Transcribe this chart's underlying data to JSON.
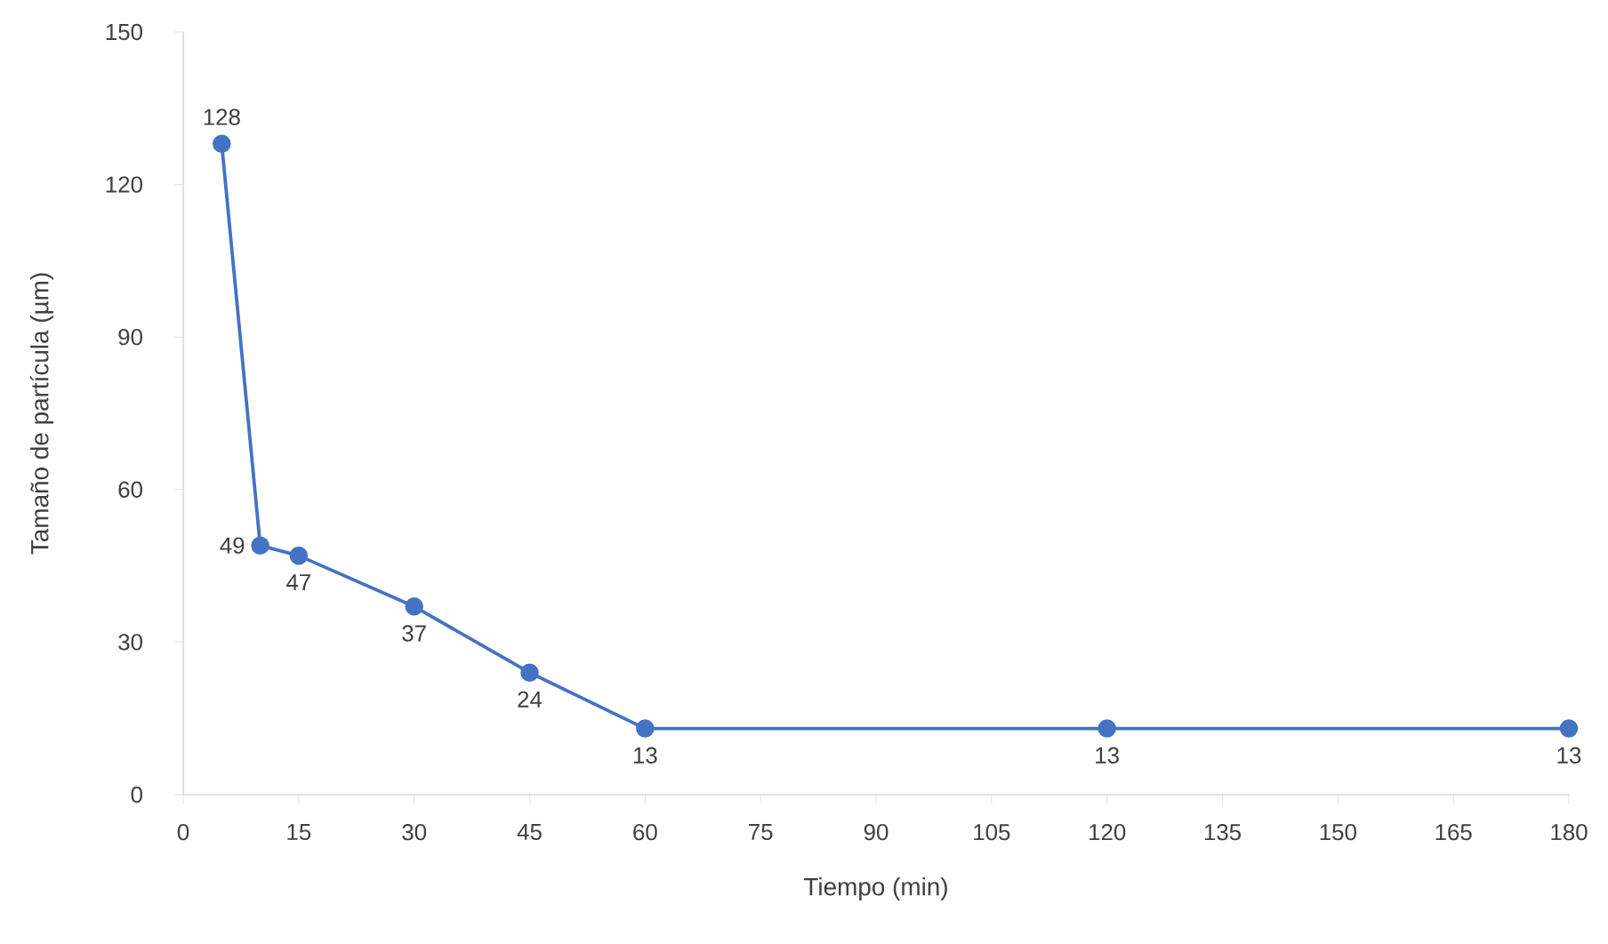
{
  "chart_data": {
    "type": "line",
    "xlabel": "Tiempo (min)",
    "ylabel": "Tamaño de partícula (µm)",
    "x": [
      5,
      10,
      15,
      30,
      45,
      60,
      120,
      180
    ],
    "series": [
      {
        "color": "#4472c4",
        "values": [
          128,
          49,
          47,
          37,
          24,
          13,
          13,
          13
        ]
      }
    ],
    "xlim": [
      0,
      180
    ],
    "xticks": [
      0,
      15,
      30,
      45,
      60,
      75,
      90,
      105,
      120,
      135,
      150,
      165,
      180
    ],
    "ylim": [
      0,
      150
    ],
    "yticks": [
      0,
      30,
      60,
      90,
      120,
      150
    ],
    "data_labels": true,
    "marker": "circle",
    "line_style": "solid"
  }
}
